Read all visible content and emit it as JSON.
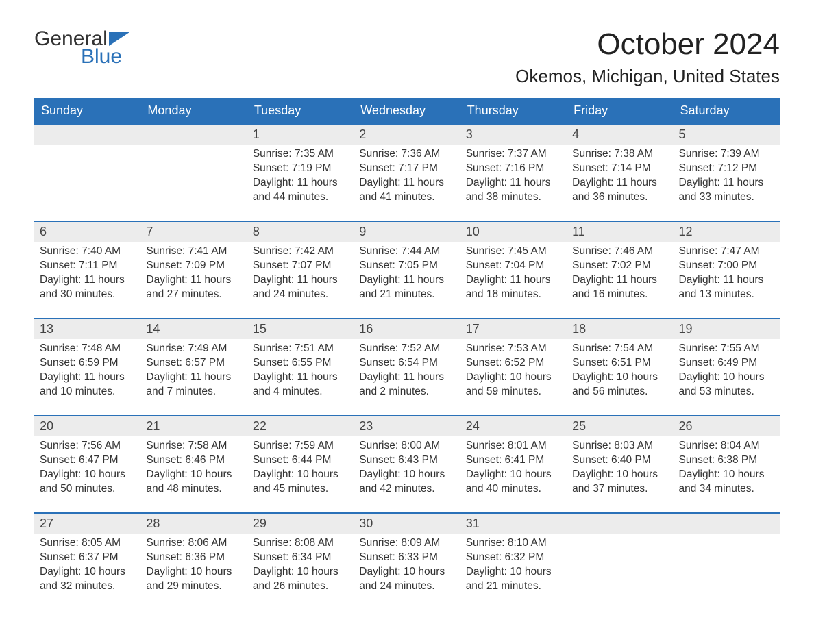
{
  "logo": {
    "text1": "General",
    "text2": "Blue",
    "color1": "#333333",
    "color2": "#2a71b8",
    "icon_color": "#2a71b8"
  },
  "title": "October 2024",
  "location": "Okemos, Michigan, United States",
  "colors": {
    "header_bg": "#2a71b8",
    "header_text": "#ffffff",
    "daynum_bg": "#ececec",
    "border": "#2a71b8",
    "body_bg": "#ffffff",
    "text": "#333333"
  },
  "typography": {
    "title_fontsize": 44,
    "location_fontsize": 26,
    "weekday_fontsize": 18,
    "daynum_fontsize": 18,
    "body_fontsize": 15.5
  },
  "weekdays": [
    "Sunday",
    "Monday",
    "Tuesday",
    "Wednesday",
    "Thursday",
    "Friday",
    "Saturday"
  ],
  "weeks": [
    [
      {
        "day": "",
        "sunrise": "",
        "sunset": "",
        "daylight": ""
      },
      {
        "day": "",
        "sunrise": "",
        "sunset": "",
        "daylight": ""
      },
      {
        "day": "1",
        "sunrise": "Sunrise: 7:35 AM",
        "sunset": "Sunset: 7:19 PM",
        "daylight": "Daylight: 11 hours and 44 minutes."
      },
      {
        "day": "2",
        "sunrise": "Sunrise: 7:36 AM",
        "sunset": "Sunset: 7:17 PM",
        "daylight": "Daylight: 11 hours and 41 minutes."
      },
      {
        "day": "3",
        "sunrise": "Sunrise: 7:37 AM",
        "sunset": "Sunset: 7:16 PM",
        "daylight": "Daylight: 11 hours and 38 minutes."
      },
      {
        "day": "4",
        "sunrise": "Sunrise: 7:38 AM",
        "sunset": "Sunset: 7:14 PM",
        "daylight": "Daylight: 11 hours and 36 minutes."
      },
      {
        "day": "5",
        "sunrise": "Sunrise: 7:39 AM",
        "sunset": "Sunset: 7:12 PM",
        "daylight": "Daylight: 11 hours and 33 minutes."
      }
    ],
    [
      {
        "day": "6",
        "sunrise": "Sunrise: 7:40 AM",
        "sunset": "Sunset: 7:11 PM",
        "daylight": "Daylight: 11 hours and 30 minutes."
      },
      {
        "day": "7",
        "sunrise": "Sunrise: 7:41 AM",
        "sunset": "Sunset: 7:09 PM",
        "daylight": "Daylight: 11 hours and 27 minutes."
      },
      {
        "day": "8",
        "sunrise": "Sunrise: 7:42 AM",
        "sunset": "Sunset: 7:07 PM",
        "daylight": "Daylight: 11 hours and 24 minutes."
      },
      {
        "day": "9",
        "sunrise": "Sunrise: 7:44 AM",
        "sunset": "Sunset: 7:05 PM",
        "daylight": "Daylight: 11 hours and 21 minutes."
      },
      {
        "day": "10",
        "sunrise": "Sunrise: 7:45 AM",
        "sunset": "Sunset: 7:04 PM",
        "daylight": "Daylight: 11 hours and 18 minutes."
      },
      {
        "day": "11",
        "sunrise": "Sunrise: 7:46 AM",
        "sunset": "Sunset: 7:02 PM",
        "daylight": "Daylight: 11 hours and 16 minutes."
      },
      {
        "day": "12",
        "sunrise": "Sunrise: 7:47 AM",
        "sunset": "Sunset: 7:00 PM",
        "daylight": "Daylight: 11 hours and 13 minutes."
      }
    ],
    [
      {
        "day": "13",
        "sunrise": "Sunrise: 7:48 AM",
        "sunset": "Sunset: 6:59 PM",
        "daylight": "Daylight: 11 hours and 10 minutes."
      },
      {
        "day": "14",
        "sunrise": "Sunrise: 7:49 AM",
        "sunset": "Sunset: 6:57 PM",
        "daylight": "Daylight: 11 hours and 7 minutes."
      },
      {
        "day": "15",
        "sunrise": "Sunrise: 7:51 AM",
        "sunset": "Sunset: 6:55 PM",
        "daylight": "Daylight: 11 hours and 4 minutes."
      },
      {
        "day": "16",
        "sunrise": "Sunrise: 7:52 AM",
        "sunset": "Sunset: 6:54 PM",
        "daylight": "Daylight: 11 hours and 2 minutes."
      },
      {
        "day": "17",
        "sunrise": "Sunrise: 7:53 AM",
        "sunset": "Sunset: 6:52 PM",
        "daylight": "Daylight: 10 hours and 59 minutes."
      },
      {
        "day": "18",
        "sunrise": "Sunrise: 7:54 AM",
        "sunset": "Sunset: 6:51 PM",
        "daylight": "Daylight: 10 hours and 56 minutes."
      },
      {
        "day": "19",
        "sunrise": "Sunrise: 7:55 AM",
        "sunset": "Sunset: 6:49 PM",
        "daylight": "Daylight: 10 hours and 53 minutes."
      }
    ],
    [
      {
        "day": "20",
        "sunrise": "Sunrise: 7:56 AM",
        "sunset": "Sunset: 6:47 PM",
        "daylight": "Daylight: 10 hours and 50 minutes."
      },
      {
        "day": "21",
        "sunrise": "Sunrise: 7:58 AM",
        "sunset": "Sunset: 6:46 PM",
        "daylight": "Daylight: 10 hours and 48 minutes."
      },
      {
        "day": "22",
        "sunrise": "Sunrise: 7:59 AM",
        "sunset": "Sunset: 6:44 PM",
        "daylight": "Daylight: 10 hours and 45 minutes."
      },
      {
        "day": "23",
        "sunrise": "Sunrise: 8:00 AM",
        "sunset": "Sunset: 6:43 PM",
        "daylight": "Daylight: 10 hours and 42 minutes."
      },
      {
        "day": "24",
        "sunrise": "Sunrise: 8:01 AM",
        "sunset": "Sunset: 6:41 PM",
        "daylight": "Daylight: 10 hours and 40 minutes."
      },
      {
        "day": "25",
        "sunrise": "Sunrise: 8:03 AM",
        "sunset": "Sunset: 6:40 PM",
        "daylight": "Daylight: 10 hours and 37 minutes."
      },
      {
        "day": "26",
        "sunrise": "Sunrise: 8:04 AM",
        "sunset": "Sunset: 6:38 PM",
        "daylight": "Daylight: 10 hours and 34 minutes."
      }
    ],
    [
      {
        "day": "27",
        "sunrise": "Sunrise: 8:05 AM",
        "sunset": "Sunset: 6:37 PM",
        "daylight": "Daylight: 10 hours and 32 minutes."
      },
      {
        "day": "28",
        "sunrise": "Sunrise: 8:06 AM",
        "sunset": "Sunset: 6:36 PM",
        "daylight": "Daylight: 10 hours and 29 minutes."
      },
      {
        "day": "29",
        "sunrise": "Sunrise: 8:08 AM",
        "sunset": "Sunset: 6:34 PM",
        "daylight": "Daylight: 10 hours and 26 minutes."
      },
      {
        "day": "30",
        "sunrise": "Sunrise: 8:09 AM",
        "sunset": "Sunset: 6:33 PM",
        "daylight": "Daylight: 10 hours and 24 minutes."
      },
      {
        "day": "31",
        "sunrise": "Sunrise: 8:10 AM",
        "sunset": "Sunset: 6:32 PM",
        "daylight": "Daylight: 10 hours and 21 minutes."
      },
      {
        "day": "",
        "sunrise": "",
        "sunset": "",
        "daylight": ""
      },
      {
        "day": "",
        "sunrise": "",
        "sunset": "",
        "daylight": ""
      }
    ]
  ]
}
